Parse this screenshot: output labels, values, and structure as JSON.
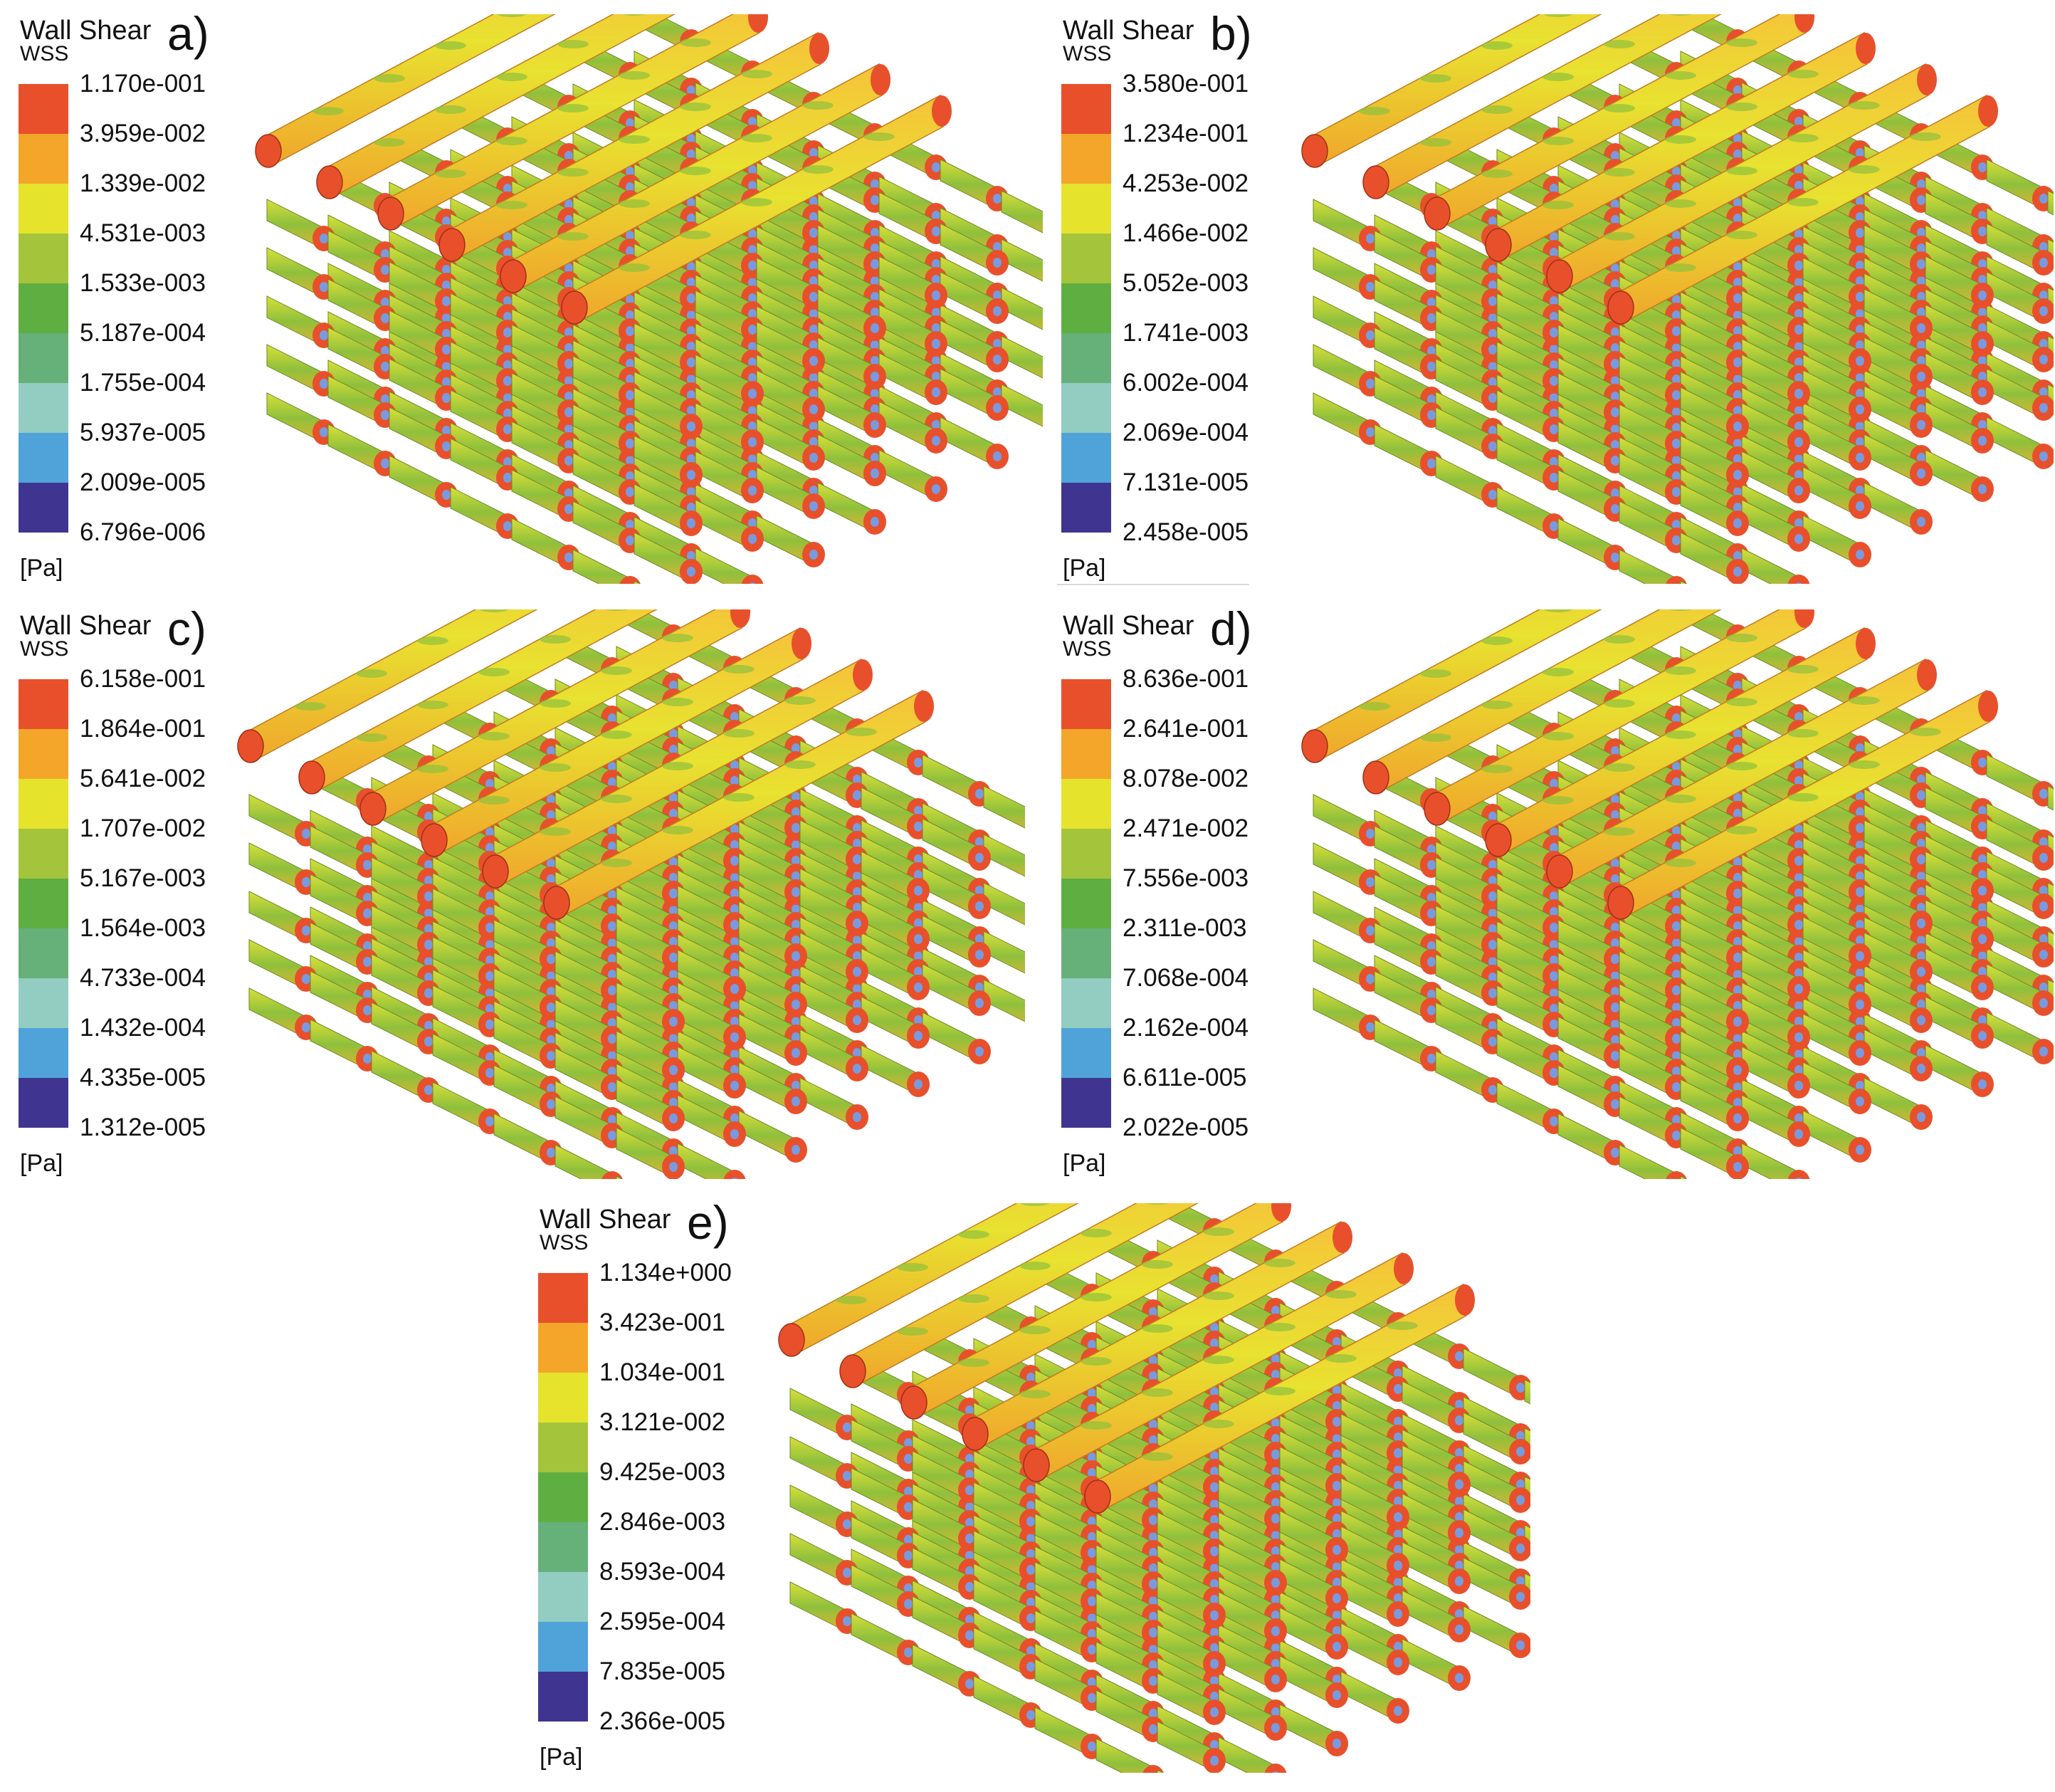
{
  "colors": [
    "#e8502b",
    "#f3a62a",
    "#e6e32c",
    "#a4c43c",
    "#5fae42",
    "#66b07a",
    "#93ccc0",
    "#4fa3d8",
    "#3f3590"
  ],
  "panels": [
    {
      "label": "a)",
      "title": "Wall Shear",
      "subtitle": "WSS",
      "unit": "[Pa]",
      "ticks": [
        "1.170e-001",
        "3.959e-002",
        "1.339e-002",
        "4.531e-003",
        "1.533e-003",
        "5.187e-004",
        "1.755e-004",
        "5.937e-005",
        "2.009e-005",
        "6.796e-006"
      ]
    },
    {
      "label": "b)",
      "title": "Wall Shear",
      "subtitle": "WSS",
      "unit": "[Pa]",
      "ticks": [
        "3.580e-001",
        "1.234e-001",
        "4.253e-002",
        "1.466e-002",
        "5.052e-003",
        "1.741e-003",
        "6.002e-004",
        "2.069e-004",
        "7.131e-005",
        "2.458e-005"
      ]
    },
    {
      "label": "c)",
      "title": "Wall Shear",
      "subtitle": "WSS",
      "unit": "[Pa]",
      "ticks": [
        "6.158e-001",
        "1.864e-001",
        "5.641e-002",
        "1.707e-002",
        "5.167e-003",
        "1.564e-003",
        "4.733e-004",
        "1.432e-004",
        "4.335e-005",
        "1.312e-005"
      ]
    },
    {
      "label": "d)",
      "title": "Wall Shear",
      "subtitle": "WSS",
      "unit": "[Pa]",
      "ticks": [
        "8.636e-001",
        "2.641e-001",
        "8.078e-002",
        "2.471e-002",
        "7.556e-003",
        "2.311e-003",
        "7.068e-004",
        "2.162e-004",
        "6.611e-005",
        "2.022e-005"
      ]
    },
    {
      "label": "e)",
      "title": "Wall Shear",
      "subtitle": "WSS",
      "unit": "[Pa]",
      "ticks": [
        "1.134e+000",
        "3.423e-001",
        "1.034e-001",
        "3.121e-002",
        "9.425e-003",
        "2.846e-003",
        "8.593e-004",
        "2.595e-004",
        "7.835e-005",
        "2.366e-005"
      ]
    }
  ]
}
